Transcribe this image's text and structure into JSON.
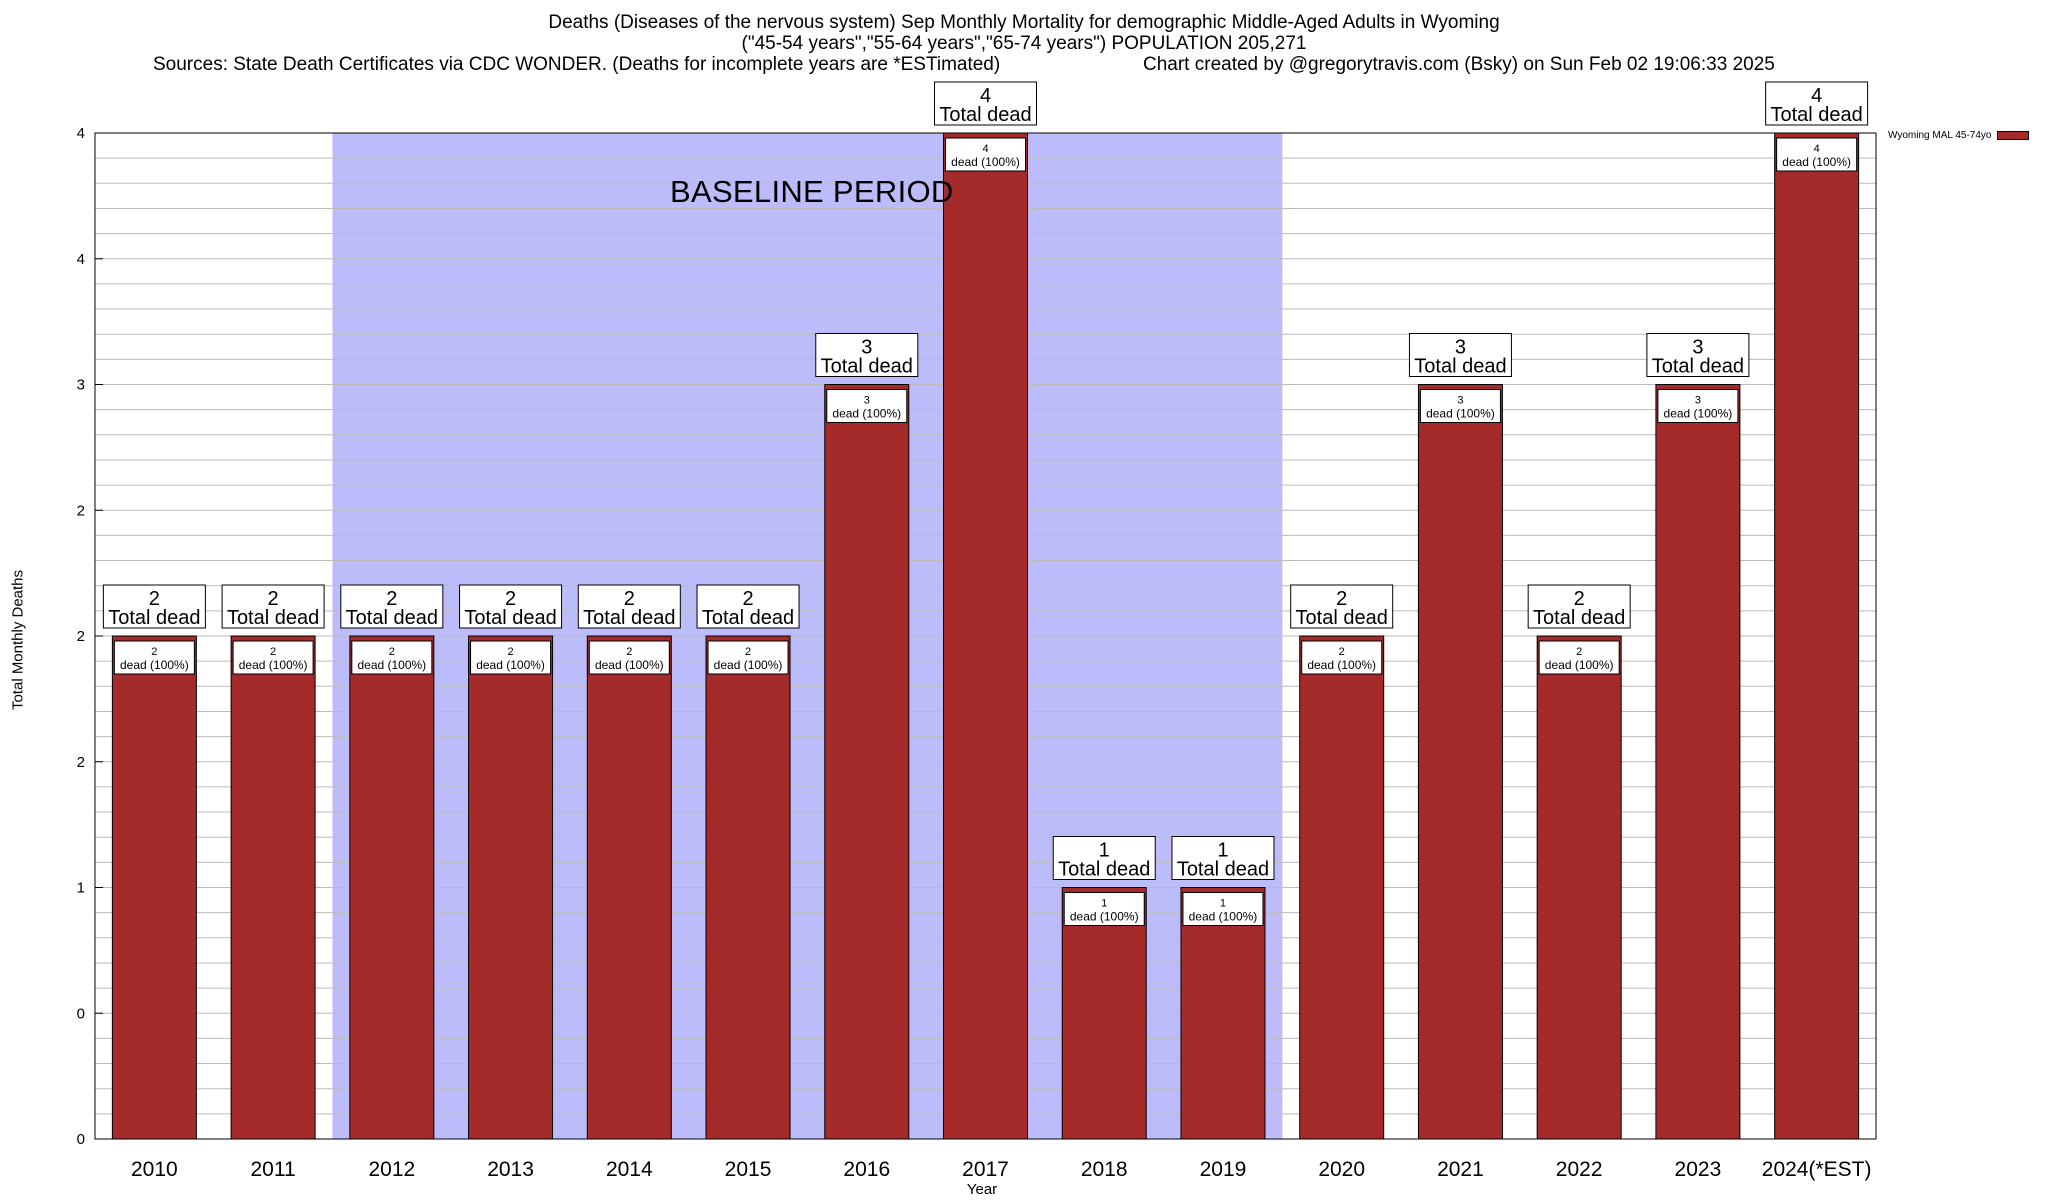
{
  "title": {
    "line1": "Deaths (Diseases of the nervous system) Sep Monthly Mortality for demographic Middle-Aged Adults in Wyoming",
    "line2": "(\"45-54 years\",\"55-64 years\",\"65-74 years\") POPULATION 205,271",
    "line3_left": "Sources: State Death Certificates via CDC WONDER. (Deaths for incomplete years are *ESTimated)",
    "line3_right": "Chart created by @gregorytravis.com (Bsky) on Sun Feb 02 19:06:33 2025"
  },
  "baseline_label": "BASELINE PERIOD",
  "legend": {
    "label": "Wyoming MAL 45-74yo"
  },
  "colors": {
    "bar": "#a52a2a",
    "baseline": "#bcbcfa",
    "grid": "#bbbbbb"
  },
  "chart_data": {
    "type": "bar",
    "title": "Deaths (Diseases of the nervous system) Sep Monthly Mortality for demographic Middle-Aged Adults in Wyoming",
    "xlabel": "Year",
    "ylabel": "Total Monthly Deaths",
    "categories": [
      "2010",
      "2011",
      "2012",
      "2013",
      "2014",
      "2015",
      "2016",
      "2017",
      "2018",
      "2019",
      "2020",
      "2021",
      "2022",
      "2023",
      "2024(*EST)"
    ],
    "series": [
      {
        "name": "Wyoming MAL 45-74yo",
        "values": [
          2,
          2,
          2,
          2,
          2,
          2,
          3,
          4,
          1,
          1,
          2,
          3,
          2,
          3,
          4
        ]
      }
    ],
    "ylim": [
      0,
      4
    ],
    "yticks": [
      {
        "value": 0,
        "label": "0"
      },
      {
        "value": 0.5,
        "label": "0"
      },
      {
        "value": 1,
        "label": "1"
      },
      {
        "value": 1.5,
        "label": "2"
      },
      {
        "value": 2,
        "label": "2"
      },
      {
        "value": 2.5,
        "label": "2"
      },
      {
        "value": 3,
        "label": "3"
      },
      {
        "value": 3.5,
        "label": "4"
      },
      {
        "value": 4,
        "label": "4"
      }
    ],
    "total_label_suffix": "Total dead",
    "inner_label_suffix": "dead (100%)",
    "baseline_period": [
      "2012",
      "2019"
    ],
    "legend_position": "top-right",
    "grid": true
  }
}
